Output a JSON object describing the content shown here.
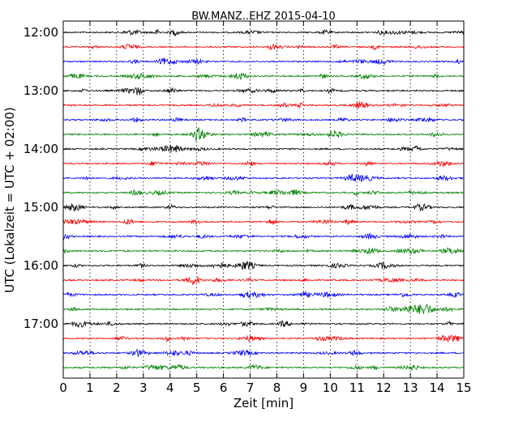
{
  "chart_data": {
    "type": "line",
    "title": "BW.MANZ..EHZ 2015-04-10",
    "xlabel": "Zeit  [min]",
    "ylabel": "UTC (Lokalzeit = UTC + 02:00)",
    "xlim": [
      0,
      15
    ],
    "x_ticks": [
      "0",
      "1",
      "2",
      "3",
      "4",
      "5",
      "6",
      "7",
      "8",
      "9",
      "10",
      "11",
      "12",
      "13",
      "14",
      "15"
    ],
    "y_ticks": [
      "12:00",
      "13:00",
      "14:00",
      "15:00",
      "16:00",
      "17:00"
    ],
    "grid": "vertical dotted",
    "trace_colors": [
      "#000000",
      "#ff0000",
      "#0000ff",
      "#008000"
    ],
    "series": [
      {
        "start": "12:00",
        "color": "#000000"
      },
      {
        "start": "12:15",
        "color": "#ff0000"
      },
      {
        "start": "12:30",
        "color": "#0000ff"
      },
      {
        "start": "12:45",
        "color": "#008000"
      },
      {
        "start": "13:00",
        "color": "#000000"
      },
      {
        "start": "13:15",
        "color": "#ff0000"
      },
      {
        "start": "13:30",
        "color": "#0000ff"
      },
      {
        "start": "13:45",
        "color": "#008000"
      },
      {
        "start": "14:00",
        "color": "#000000"
      },
      {
        "start": "14:15",
        "color": "#ff0000"
      },
      {
        "start": "14:30",
        "color": "#0000ff"
      },
      {
        "start": "14:45",
        "color": "#008000"
      },
      {
        "start": "15:00",
        "color": "#000000"
      },
      {
        "start": "15:15",
        "color": "#ff0000"
      },
      {
        "start": "15:30",
        "color": "#0000ff"
      },
      {
        "start": "15:45",
        "color": "#008000"
      },
      {
        "start": "16:00",
        "color": "#000000"
      },
      {
        "start": "16:15",
        "color": "#ff0000"
      },
      {
        "start": "16:30",
        "color": "#0000ff"
      },
      {
        "start": "16:45",
        "color": "#008000"
      },
      {
        "start": "17:00",
        "color": "#000000"
      },
      {
        "start": "17:15",
        "color": "#ff0000"
      },
      {
        "start": "17:30",
        "color": "#0000ff"
      },
      {
        "start": "17:45",
        "color": "#008000"
      }
    ]
  }
}
